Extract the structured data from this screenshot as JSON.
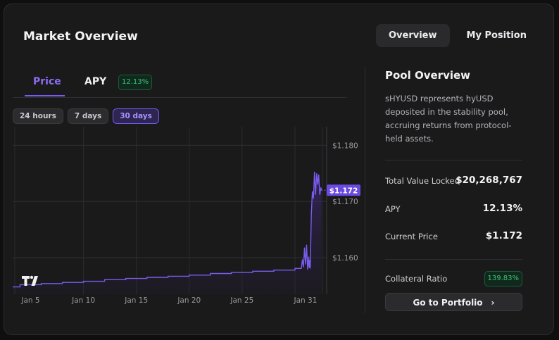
{
  "header": {
    "title": "Market Overview"
  },
  "top_tabs": [
    {
      "label": "Overview",
      "active": true
    },
    {
      "label": "My Position",
      "active": false
    }
  ],
  "chart_tabs": {
    "price": "Price",
    "apy": "APY",
    "apy_badge": "12.13%"
  },
  "ranges": [
    {
      "label": "24 hours",
      "active": false
    },
    {
      "label": "7 days",
      "active": false
    },
    {
      "label": "30 days",
      "active": true
    }
  ],
  "pool": {
    "title": "Pool Overview",
    "description": "sHYUSD represents hyUSD deposited in the stability pool, accruing returns from protocol-held assets.",
    "tvl_label": "Total Value Locked",
    "tvl_value": "$20,268,767",
    "apy_label": "APY",
    "apy_value": "12.13%",
    "price_label": "Current Price",
    "price_value": "$1.172",
    "collateral_label": "Collateral Ratio",
    "collateral_value": "139.83%",
    "button_label": "Go to Portfolio"
  },
  "colors": {
    "accent": "#7a5cf0",
    "green": "#42c27a",
    "bg": "#1a1a1b"
  },
  "chart_data": {
    "type": "line",
    "x_ticks": [
      "Jan 5",
      "Jan 10",
      "Jan 15",
      "Jan 20",
      "Jan 25",
      "Jan 31"
    ],
    "y_ticks": [
      "$1.180",
      "$1.170",
      "$1.160"
    ],
    "current_label": "$1.172",
    "ylim": [
      1.1535,
      1.1823
    ],
    "xlim": [
      3.3,
      33.0
    ],
    "series": [
      {
        "values": [
          [
            3.3,
            1.1548
          ],
          [
            4.0,
            1.1548
          ],
          [
            4.0,
            1.1552
          ],
          [
            6.0,
            1.1552
          ],
          [
            6.0,
            1.1554
          ],
          [
            8.0,
            1.1554
          ],
          [
            8.0,
            1.1556
          ],
          [
            10.0,
            1.1556
          ],
          [
            10.0,
            1.1558
          ],
          [
            12.0,
            1.1558
          ],
          [
            12.0,
            1.1561
          ],
          [
            14.0,
            1.1561
          ],
          [
            14.0,
            1.1563
          ],
          [
            16.0,
            1.1563
          ],
          [
            16.0,
            1.1565
          ],
          [
            18.0,
            1.1565
          ],
          [
            18.0,
            1.1567
          ],
          [
            20.0,
            1.1567
          ],
          [
            20.0,
            1.1569
          ],
          [
            22.0,
            1.1569
          ],
          [
            22.0,
            1.1572
          ],
          [
            24.0,
            1.1572
          ],
          [
            24.0,
            1.1574
          ],
          [
            26.0,
            1.1574
          ],
          [
            26.0,
            1.1576
          ],
          [
            28.0,
            1.1576
          ],
          [
            28.0,
            1.1578
          ],
          [
            30.0,
            1.1578
          ],
          [
            30.0,
            1.1581
          ],
          [
            30.6,
            1.1581
          ],
          [
            30.7,
            1.1597
          ],
          [
            30.8,
            1.1583
          ],
          [
            30.9,
            1.1618
          ],
          [
            31.0,
            1.1588
          ],
          [
            31.1,
            1.1623
          ],
          [
            31.2,
            1.1579
          ],
          [
            31.3,
            1.1602
          ],
          [
            31.35,
            1.1582
          ],
          [
            31.4,
            1.1596
          ],
          [
            31.45,
            1.1581
          ],
          [
            31.55,
            1.1678
          ],
          [
            31.65,
            1.1718
          ],
          [
            31.75,
            1.1705
          ],
          [
            31.85,
            1.1753
          ],
          [
            31.95,
            1.1712
          ],
          [
            32.05,
            1.175
          ],
          [
            32.15,
            1.173
          ],
          [
            32.25,
            1.1748
          ],
          [
            32.35,
            1.1712
          ],
          [
            32.45,
            1.1725
          ],
          [
            32.5,
            1.172
          ]
        ]
      }
    ]
  }
}
